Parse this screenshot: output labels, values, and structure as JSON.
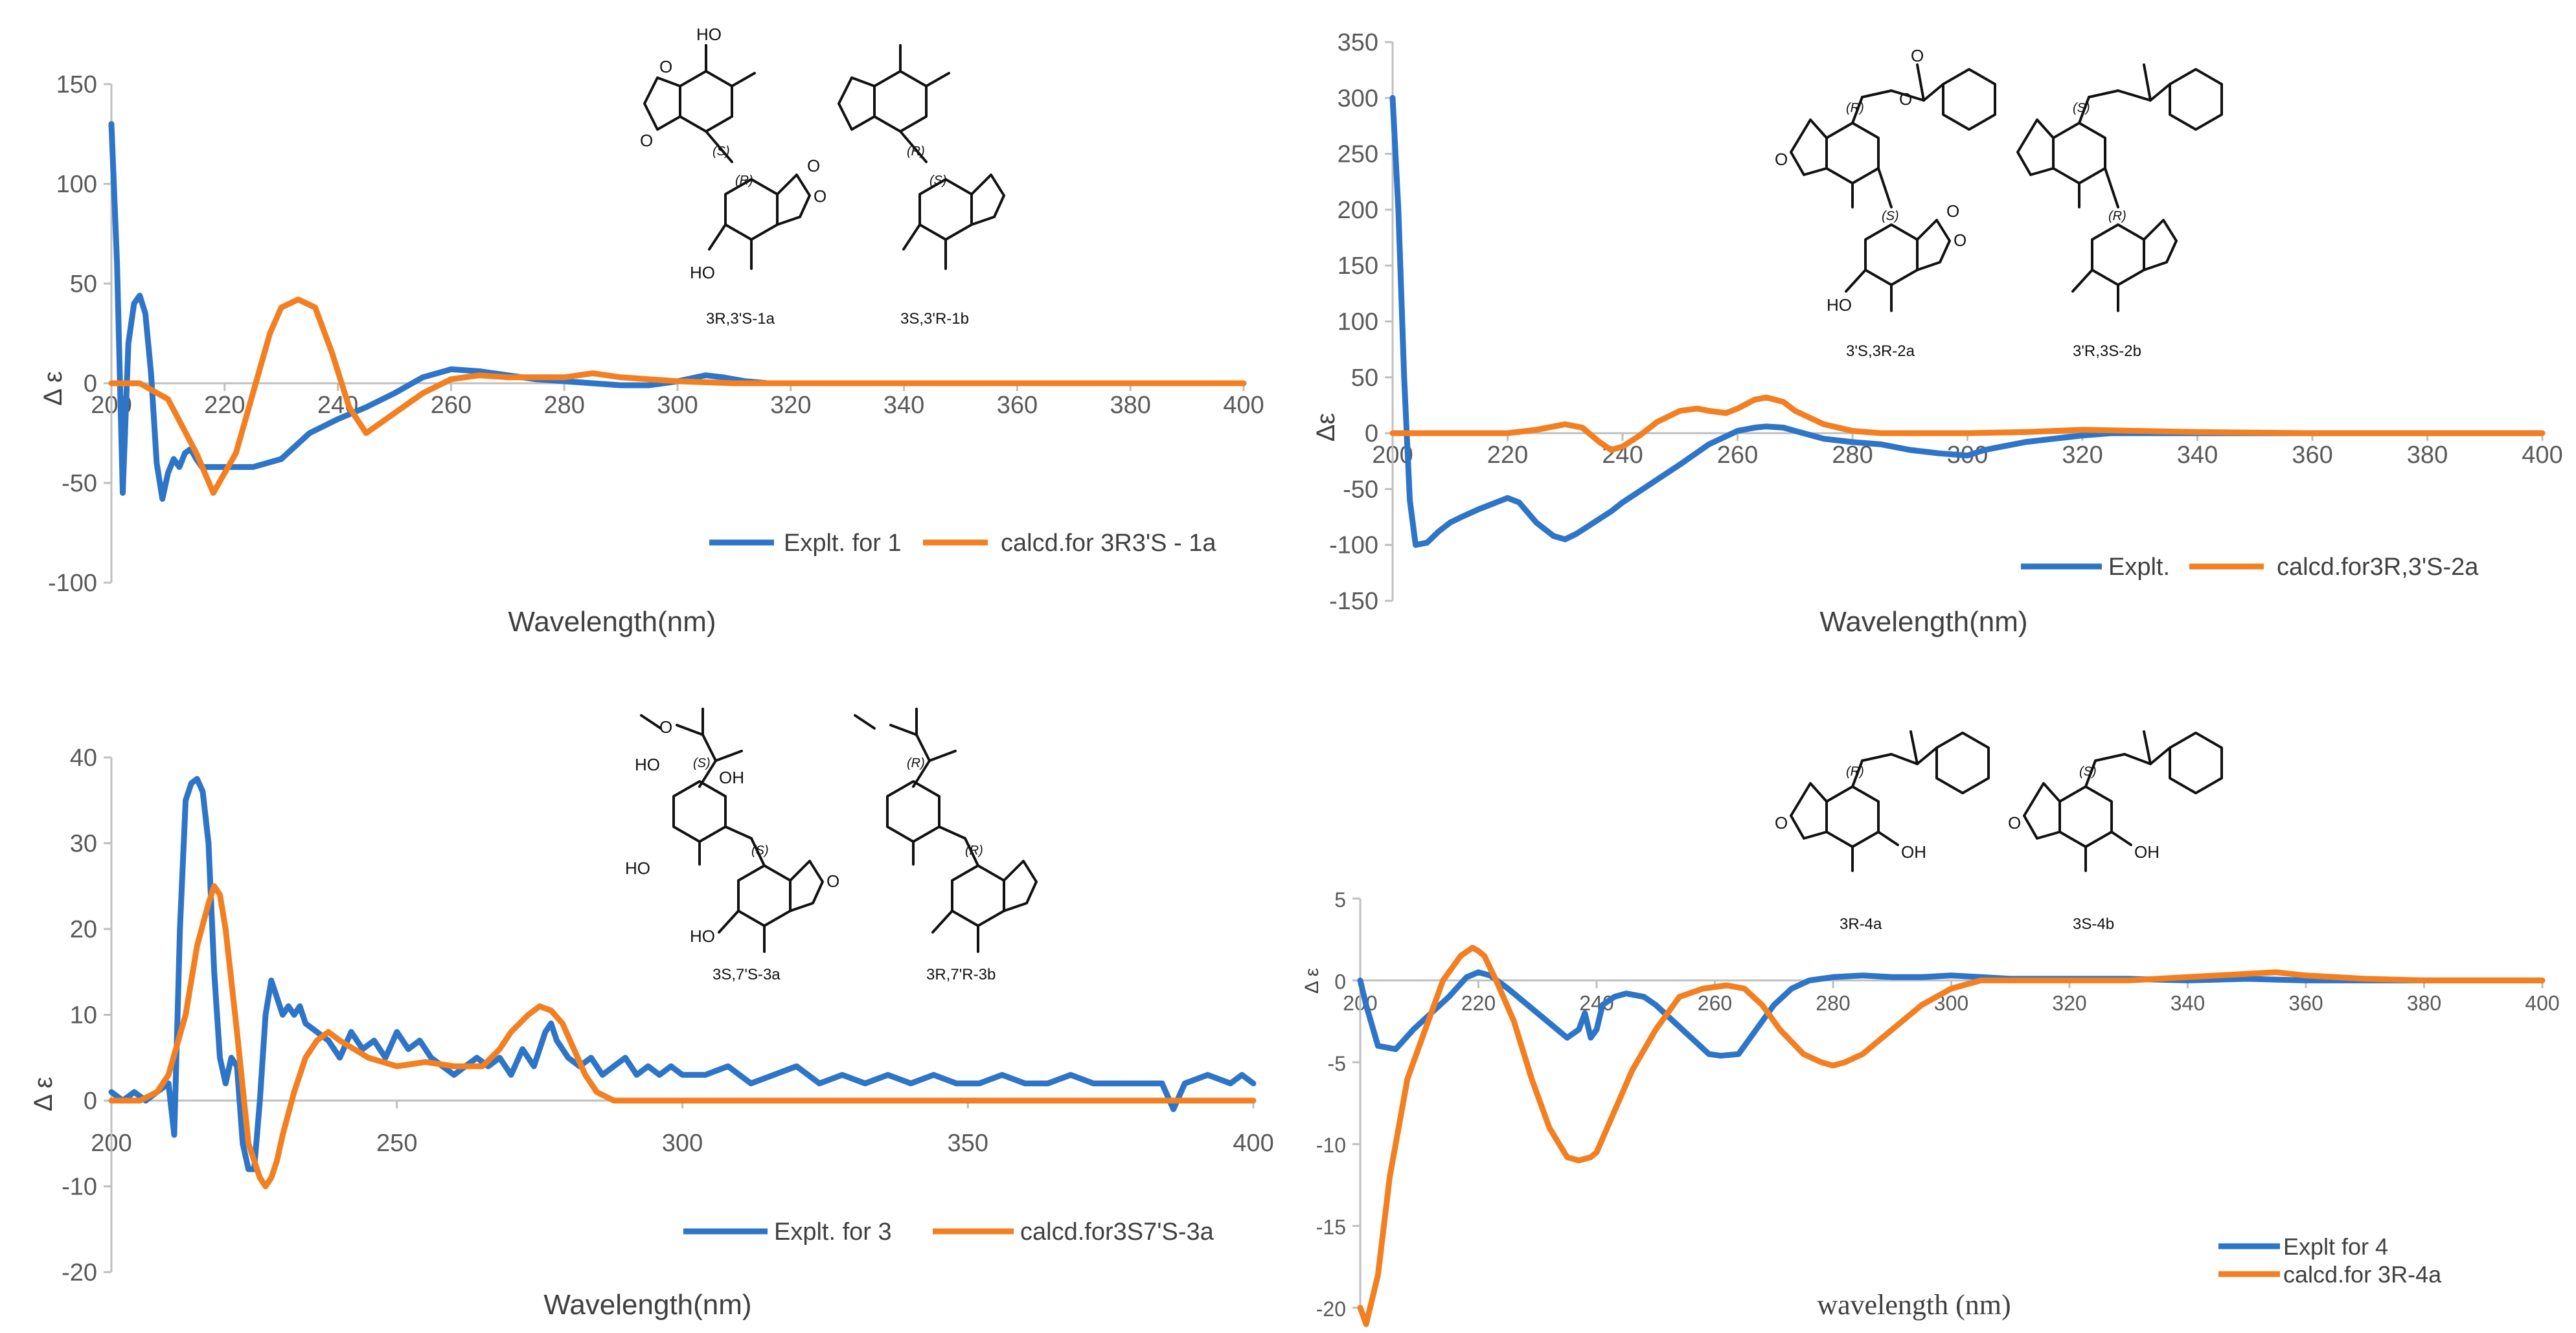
{
  "colors": {
    "expt": "#2E75C8",
    "calc": "#F28022",
    "axis": "#BFBFBF",
    "text": "#404040"
  },
  "panels": [
    {
      "id": "p1",
      "xlabel": "Wavelength(nm)",
      "ylabel": "Δ ε",
      "legend": [
        "Explt. for 1",
        "calcd.for 3R3'S - 1a"
      ],
      "structure_captions": [
        "3R,3'S-1a",
        "3S,3'R-1b"
      ],
      "atom_labels": [
        "HO",
        "O",
        "O",
        "HO",
        "O",
        "O"
      ],
      "stereo_labels": [
        "(S)",
        "(R)",
        "(R)",
        "(S)"
      ]
    },
    {
      "id": "p2",
      "xlabel": "Wavelength(nm)",
      "ylabel": "Δε",
      "legend": [
        "Explt.",
        "calcd.for3R,3'S-2a"
      ],
      "structure_captions": [
        "3'S,3R-2a",
        "3'R,3S-2b"
      ],
      "atom_labels": [
        "O",
        "O",
        "O",
        "HO",
        "O",
        "O"
      ],
      "stereo_labels": [
        "(R)",
        "(S)",
        "(S)",
        "(R)"
      ]
    },
    {
      "id": "p3",
      "xlabel": "Wavelength(nm)",
      "ylabel": "Δ ε",
      "legend": [
        "Explt. for 3",
        "calcd.for3S7'S-3a"
      ],
      "structure_captions": [
        "3S,7'S-3a",
        "3R,7'R-3b"
      ],
      "atom_labels": [
        "O",
        "OH",
        "HO",
        "HO",
        "O",
        "HO"
      ],
      "stereo_labels": [
        "(S)",
        "(S)",
        "(R)",
        "(R)"
      ]
    },
    {
      "id": "p4",
      "xlabel": "wavelength (nm)",
      "ylabel": "Δ ε",
      "legend": [
        "Explt for 4",
        "calcd.for 3R-4a"
      ],
      "structure_captions": [
        "3R-4a",
        "3S-4b"
      ],
      "atom_labels": [
        "O",
        "OH",
        "O",
        "OH"
      ],
      "stereo_labels": [
        "(R)",
        "(S)"
      ]
    }
  ],
  "chart_data": [
    {
      "type": "line",
      "title": "",
      "xlabel": "Wavelength(nm)",
      "ylabel": "Δ ε",
      "xlim": [
        200,
        400
      ],
      "ylim": [
        -100,
        150
      ],
      "xticks": [
        200,
        220,
        240,
        260,
        280,
        300,
        320,
        340,
        360,
        380,
        400
      ],
      "yticks": [
        -100,
        -50,
        0,
        50,
        100,
        150
      ],
      "series": [
        {
          "name": "Explt. for 1",
          "color": "#2E75C8",
          "x": [
            200,
            201,
            202,
            203,
            204,
            205,
            206,
            207,
            208,
            209,
            210,
            211,
            212,
            213,
            214,
            215,
            216,
            218,
            220,
            225,
            230,
            235,
            240,
            245,
            250,
            255,
            260,
            265,
            270,
            275,
            280,
            285,
            290,
            295,
            300,
            305,
            308,
            312,
            316,
            320,
            330,
            340,
            360,
            380,
            400
          ],
          "y": [
            130,
            60,
            -55,
            20,
            40,
            44,
            35,
            5,
            -40,
            -58,
            -45,
            -38,
            -42,
            -35,
            -33,
            -38,
            -42,
            -42,
            -42,
            -42,
            -38,
            -25,
            -18,
            -12,
            -5,
            3,
            7,
            6,
            4,
            2,
            1,
            0,
            -1,
            -1,
            1,
            4,
            3,
            1,
            0,
            0,
            0,
            0,
            0,
            0,
            0
          ]
        },
        {
          "name": "calcd.for 3R3'S - 1a",
          "color": "#F28022",
          "x": [
            200,
            205,
            210,
            215,
            218,
            222,
            225,
            228,
            230,
            233,
            236,
            239,
            242,
            245,
            250,
            255,
            260,
            265,
            270,
            280,
            285,
            290,
            300,
            310,
            320,
            340,
            360,
            380,
            400
          ],
          "y": [
            0,
            0,
            -8,
            -35,
            -55,
            -35,
            -5,
            25,
            38,
            42,
            38,
            15,
            -12,
            -25,
            -15,
            -5,
            2,
            4,
            3,
            3,
            5,
            3,
            1,
            0,
            0,
            0,
            0,
            0,
            0
          ]
        }
      ]
    },
    {
      "type": "line",
      "title": "",
      "xlabel": "Wavelength(nm)",
      "ylabel": "Δε",
      "xlim": [
        200,
        400
      ],
      "ylim": [
        -150,
        350
      ],
      "xticks": [
        200,
        220,
        240,
        260,
        280,
        300,
        320,
        340,
        360,
        380,
        400
      ],
      "yticks": [
        -150,
        -100,
        -50,
        0,
        50,
        100,
        150,
        200,
        250,
        300,
        350
      ],
      "series": [
        {
          "name": "Explt.",
          "color": "#2E75C8",
          "x": [
            200,
            201,
            202,
            203,
            204,
            206,
            208,
            210,
            212,
            215,
            218,
            220,
            222,
            225,
            228,
            230,
            232,
            235,
            238,
            240,
            245,
            250,
            255,
            260,
            263,
            265,
            268,
            270,
            275,
            280,
            285,
            290,
            295,
            300,
            303,
            306,
            310,
            315,
            320,
            325,
            330,
            340,
            360,
            380,
            400
          ],
          "y": [
            300,
            200,
            50,
            -60,
            -100,
            -98,
            -88,
            -80,
            -75,
            -68,
            -62,
            -58,
            -62,
            -80,
            -92,
            -95,
            -90,
            -80,
            -70,
            -62,
            -45,
            -28,
            -10,
            2,
            5,
            6,
            5,
            2,
            -5,
            -8,
            -10,
            -15,
            -18,
            -20,
            -15,
            -12,
            -8,
            -5,
            -2,
            0,
            0,
            0,
            0,
            0,
            0
          ]
        },
        {
          "name": "calcd.for3R,3'S-2a",
          "color": "#F28022",
          "x": [
            200,
            210,
            220,
            225,
            230,
            233,
            236,
            238,
            240,
            243,
            246,
            250,
            253,
            255,
            258,
            260,
            263,
            265,
            268,
            270,
            275,
            280,
            285,
            290,
            300,
            310,
            320,
            330,
            340,
            360,
            380,
            400
          ],
          "y": [
            0,
            0,
            0,
            3,
            8,
            5,
            -8,
            -15,
            -12,
            -2,
            10,
            20,
            22,
            20,
            18,
            22,
            30,
            32,
            28,
            20,
            8,
            2,
            0,
            0,
            0,
            1,
            3,
            2,
            1,
            0,
            0,
            0
          ]
        }
      ]
    },
    {
      "type": "line",
      "title": "",
      "xlabel": "Wavelength(nm)",
      "ylabel": "Δ ε",
      "xlim": [
        200,
        400
      ],
      "ylim": [
        -20,
        40
      ],
      "xticks": [
        200,
        250,
        300,
        350,
        400
      ],
      "yticks": [
        -20,
        -10,
        0,
        10,
        20,
        30,
        40
      ],
      "series": [
        {
          "name": "Explt. for 3",
          "color": "#2E75C8",
          "x": [
            200,
            202,
            204,
            206,
            208,
            210,
            211,
            212,
            213,
            214,
            215,
            216,
            217,
            218,
            219,
            220,
            221,
            222,
            223,
            224,
            225,
            226,
            227,
            228,
            229,
            230,
            231,
            232,
            233,
            234,
            236,
            238,
            240,
            242,
            244,
            246,
            248,
            250,
            252,
            254,
            256,
            258,
            260,
            262,
            264,
            266,
            268,
            270,
            272,
            274,
            276,
            277,
            278,
            280,
            282,
            284,
            286,
            288,
            290,
            292,
            294,
            296,
            298,
            300,
            304,
            308,
            312,
            316,
            320,
            324,
            328,
            332,
            336,
            340,
            344,
            348,
            352,
            356,
            360,
            364,
            368,
            372,
            376,
            380,
            384,
            386,
            388,
            392,
            396,
            398,
            400
          ],
          "y": [
            1,
            0,
            1,
            0,
            1,
            2,
            -4,
            20,
            35,
            37,
            37.5,
            36,
            30,
            15,
            5,
            2,
            5,
            4,
            -5,
            -8,
            -8,
            0,
            10,
            14,
            12,
            10,
            11,
            10,
            11,
            9,
            8,
            7,
            5,
            8,
            6,
            7,
            5,
            8,
            6,
            7,
            5,
            4,
            3,
            4,
            5,
            4,
            5,
            3,
            6,
            4,
            8,
            9,
            7,
            5,
            4,
            5,
            3,
            4,
            5,
            3,
            4,
            3,
            4,
            3,
            3,
            4,
            2,
            3,
            4,
            2,
            3,
            2,
            3,
            2,
            3,
            2,
            2,
            3,
            2,
            2,
            3,
            2,
            2,
            2,
            2,
            -1,
            2,
            3,
            2,
            3,
            2
          ]
        },
        {
          "name": "calcd.for3S7'S-3a",
          "color": "#F28022",
          "x": [
            200,
            205,
            208,
            210,
            213,
            215,
            217,
            218,
            219,
            220,
            222,
            224,
            226,
            227,
            228,
            229,
            230,
            232,
            234,
            236,
            238,
            240,
            245,
            250,
            255,
            260,
            265,
            268,
            270,
            273,
            275,
            277,
            279,
            281,
            283,
            285,
            288,
            292,
            296,
            300,
            320,
            340,
            360,
            380,
            400
          ],
          "y": [
            0,
            0,
            1,
            3,
            10,
            18,
            23,
            25,
            24,
            20,
            8,
            -5,
            -9,
            -10,
            -9,
            -7,
            -4,
            1,
            5,
            7,
            8,
            7,
            5,
            4,
            4.5,
            4,
            4,
            6,
            8,
            10,
            11,
            10.5,
            9,
            6,
            3,
            1,
            0,
            0,
            0,
            0,
            0,
            0,
            0,
            0,
            0
          ]
        }
      ]
    },
    {
      "type": "line",
      "title": "",
      "xlabel": "wavelength (nm)",
      "ylabel": "Δ ε",
      "xlim": [
        200,
        400
      ],
      "ylim": [
        -20,
        5
      ],
      "xticks": [
        200,
        220,
        240,
        260,
        280,
        300,
        320,
        340,
        360,
        380,
        400
      ],
      "yticks": [
        -20,
        -15,
        -10,
        -5,
        0,
        5
      ],
      "series": [
        {
          "name": "Explt for 4",
          "color": "#2E75C8",
          "x": [
            200,
            201,
            203,
            206,
            209,
            212,
            215,
            218,
            220,
            222,
            225,
            230,
            235,
            237,
            238,
            239,
            240,
            241,
            243,
            245,
            248,
            250,
            253,
            256,
            259,
            261,
            264,
            266,
            268,
            270,
            273,
            276,
            280,
            285,
            290,
            295,
            300,
            305,
            310,
            320,
            330,
            340,
            350,
            360,
            370,
            380,
            390,
            400
          ],
          "y": [
            0,
            -1.5,
            -4,
            -4.2,
            -3,
            -2,
            -1,
            0.2,
            0.5,
            0.3,
            -0.5,
            -2,
            -3.5,
            -3,
            -2,
            -3.5,
            -3,
            -1.5,
            -1,
            -0.8,
            -1,
            -1.5,
            -2.5,
            -3.5,
            -4.5,
            -4.6,
            -4.5,
            -3.5,
            -2.5,
            -1.5,
            -0.5,
            0,
            0.2,
            0.3,
            0.2,
            0.2,
            0.3,
            0.2,
            0.1,
            0.1,
            0.1,
            0,
            0.1,
            0,
            0,
            0,
            0,
            0
          ]
        },
        {
          "name": "calcd.for 3R-4a",
          "color": "#F28022",
          "x": [
            200,
            201,
            203,
            205,
            208,
            211,
            214,
            217,
            219,
            220,
            221,
            223,
            226,
            229,
            232,
            235,
            237,
            239,
            240,
            243,
            246,
            250,
            254,
            258,
            262,
            265,
            268,
            271,
            275,
            278,
            280,
            282,
            285,
            290,
            295,
            300,
            305,
            310,
            320,
            330,
            340,
            350,
            355,
            360,
            370,
            380,
            390,
            400
          ],
          "y": [
            -20,
            -21,
            -18,
            -12,
            -6,
            -3,
            0,
            1.5,
            2,
            1.8,
            1.5,
            0,
            -2.5,
            -6,
            -9,
            -10.8,
            -11,
            -10.8,
            -10.5,
            -8,
            -5.5,
            -3,
            -1,
            -0.5,
            -0.3,
            -0.5,
            -1.5,
            -3,
            -4.5,
            -5,
            -5.2,
            -5,
            -4.5,
            -3,
            -1.5,
            -0.5,
            0,
            0,
            0,
            0,
            0.2,
            0.4,
            0.5,
            0.3,
            0.1,
            0,
            0,
            0
          ]
        }
      ]
    }
  ]
}
